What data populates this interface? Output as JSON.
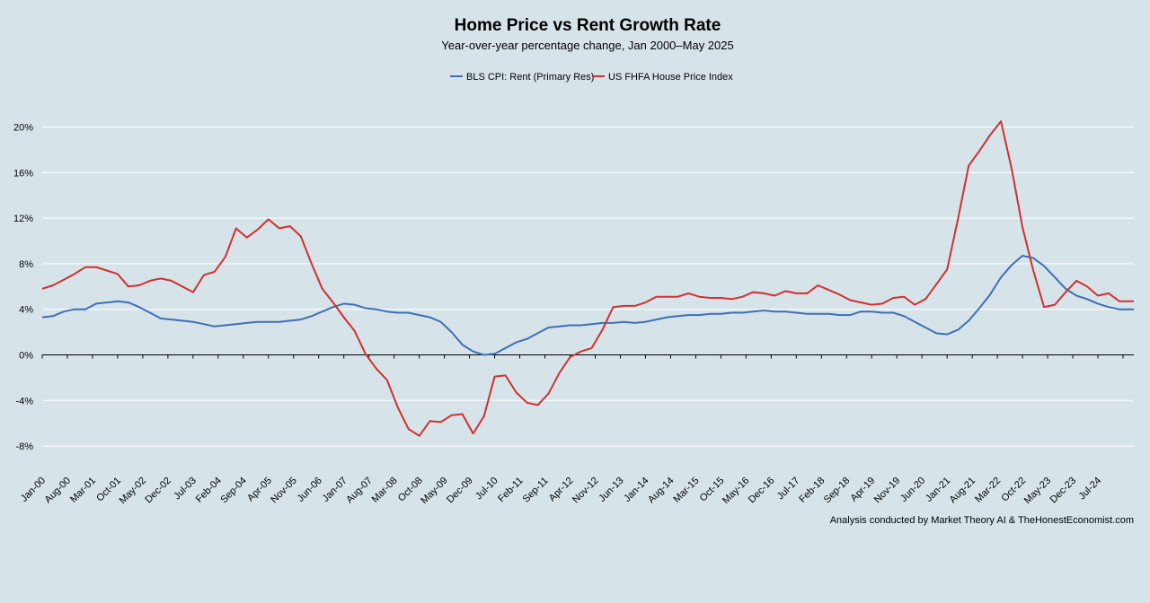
{
  "chart_data": {
    "type": "line",
    "title": "Home Price vs Rent Growth Rate",
    "subtitle": "Year-over-year percentage change, Jan 2000–May 2025",
    "xlabel": "",
    "ylabel": "",
    "ylim": [
      -10,
      22
    ],
    "yticks": [
      -8,
      -4,
      0,
      4,
      8,
      12,
      16,
      20
    ],
    "ytick_labels": [
      "-8%",
      "-4%",
      "0%",
      "4%",
      "8%",
      "12%",
      "16%",
      "20%"
    ],
    "x_start": "Jan-00",
    "x_end": "May-25",
    "xtick_labels": [
      "Jan-00",
      "Aug-00",
      "Mar-01",
      "Oct-01",
      "May-02",
      "Dec-02",
      "Jul-03",
      "Feb-04",
      "Sep-04",
      "Apr-05",
      "Nov-05",
      "Jun-06",
      "Jan-07",
      "Aug-07",
      "Mar-08",
      "Oct-08",
      "May-09",
      "Dec-09",
      "Jul-10",
      "Feb-11",
      "Sep-11",
      "Apr-12",
      "Nov-12",
      "Jun-13",
      "Jan-14",
      "Aug-14",
      "Mar-15",
      "Oct-15",
      "May-16",
      "Dec-16",
      "Jul-17",
      "Feb-18",
      "Sep-18",
      "Apr-19",
      "Nov-19",
      "Jun-20",
      "Jan-21",
      "Aug-21",
      "Mar-22",
      "Oct-22",
      "May-23",
      "Dec-23",
      "Jul-24"
    ],
    "grid": true,
    "legend_position": "top-center",
    "annotation": "Analysis conducted by Market Theory AI & TheHonestEconomist.com",
    "series": [
      {
        "name": "BLS CPI: Rent (Primary Res)",
        "color": "#3e6fb6",
        "x": [
          "Jan-00",
          "Apr-00",
          "Jul-00",
          "Oct-00",
          "Jan-01",
          "Apr-01",
          "Jul-01",
          "Oct-01",
          "Jan-02",
          "Apr-02",
          "Jul-02",
          "Oct-02",
          "Jan-03",
          "Apr-03",
          "Jul-03",
          "Oct-03",
          "Jan-04",
          "Apr-04",
          "Jul-04",
          "Oct-04",
          "Jan-05",
          "Apr-05",
          "Jul-05",
          "Oct-05",
          "Jan-06",
          "Apr-06",
          "Jul-06",
          "Oct-06",
          "Jan-07",
          "Apr-07",
          "Jul-07",
          "Oct-07",
          "Jan-08",
          "Apr-08",
          "Jul-08",
          "Oct-08",
          "Jan-09",
          "Apr-09",
          "Jul-09",
          "Oct-09",
          "Jan-10",
          "Apr-10",
          "Jul-10",
          "Oct-10",
          "Jan-11",
          "Apr-11",
          "Jul-11",
          "Oct-11",
          "Jan-12",
          "Apr-12",
          "Jul-12",
          "Oct-12",
          "Jan-13",
          "Apr-13",
          "Jul-13",
          "Oct-13",
          "Jan-14",
          "Apr-14",
          "Jul-14",
          "Oct-14",
          "Jan-15",
          "Apr-15",
          "Jul-15",
          "Oct-15",
          "Jan-16",
          "Apr-16",
          "Jul-16",
          "Oct-16",
          "Jan-17",
          "Apr-17",
          "Jul-17",
          "Oct-17",
          "Jan-18",
          "Apr-18",
          "Jul-18",
          "Oct-18",
          "Jan-19",
          "Apr-19",
          "Jul-19",
          "Oct-19",
          "Jan-20",
          "Apr-20",
          "Jul-20",
          "Oct-20",
          "Jan-21",
          "Apr-21",
          "Jul-21",
          "Oct-21",
          "Jan-22",
          "Apr-22",
          "Jul-22",
          "Oct-22",
          "Jan-23",
          "Apr-23",
          "Jul-23",
          "Oct-23",
          "Jan-24",
          "Apr-24",
          "Jul-24",
          "Oct-24",
          "Jan-25",
          "May-25"
        ],
        "values": [
          3.3,
          3.4,
          3.8,
          4.0,
          4.0,
          4.5,
          4.6,
          4.7,
          4.6,
          4.2,
          3.7,
          3.2,
          3.1,
          3.0,
          2.9,
          2.7,
          2.5,
          2.6,
          2.7,
          2.8,
          2.9,
          2.9,
          2.9,
          3.0,
          3.1,
          3.4,
          3.8,
          4.2,
          4.5,
          4.4,
          4.1,
          4.0,
          3.8,
          3.7,
          3.7,
          3.5,
          3.3,
          2.9,
          2.0,
          0.9,
          0.3,
          0.0,
          0.1,
          0.6,
          1.1,
          1.4,
          1.9,
          2.4,
          2.5,
          2.6,
          2.6,
          2.7,
          2.8,
          2.8,
          2.9,
          2.8,
          2.9,
          3.1,
          3.3,
          3.4,
          3.5,
          3.5,
          3.6,
          3.6,
          3.7,
          3.7,
          3.8,
          3.9,
          3.8,
          3.8,
          3.7,
          3.6,
          3.6,
          3.6,
          3.5,
          3.5,
          3.8,
          3.8,
          3.7,
          3.7,
          3.4,
          2.9,
          2.4,
          1.9,
          1.8,
          2.2,
          3.0,
          4.1,
          5.3,
          6.8,
          7.9,
          8.7,
          8.5,
          7.8,
          6.8,
          5.8,
          5.2,
          4.9,
          4.5,
          4.2,
          4.0,
          4.0
        ]
      },
      {
        "name": "US FHFA House Price Index",
        "color": "#d0302e",
        "x": [
          "Jan-00",
          "Apr-00",
          "Jul-00",
          "Oct-00",
          "Jan-01",
          "Apr-01",
          "Jul-01",
          "Oct-01",
          "Jan-02",
          "Apr-02",
          "Jul-02",
          "Oct-02",
          "Jan-03",
          "Apr-03",
          "Jul-03",
          "Oct-03",
          "Jan-04",
          "Apr-04",
          "Jul-04",
          "Oct-04",
          "Jan-05",
          "Apr-05",
          "Jul-05",
          "Oct-05",
          "Jan-06",
          "Apr-06",
          "Jul-06",
          "Oct-06",
          "Jan-07",
          "Apr-07",
          "Jul-07",
          "Oct-07",
          "Jan-08",
          "Apr-08",
          "Jul-08",
          "Oct-08",
          "Jan-09",
          "Apr-09",
          "Jul-09",
          "Oct-09",
          "Jan-10",
          "Apr-10",
          "Jul-10",
          "Oct-10",
          "Jan-11",
          "Apr-11",
          "Jul-11",
          "Oct-11",
          "Jan-12",
          "Apr-12",
          "Jul-12",
          "Oct-12",
          "Jan-13",
          "Apr-13",
          "Jul-13",
          "Oct-13",
          "Jan-14",
          "Apr-14",
          "Jul-14",
          "Oct-14",
          "Jan-15",
          "Apr-15",
          "Jul-15",
          "Oct-15",
          "Jan-16",
          "Apr-16",
          "Jul-16",
          "Oct-16",
          "Jan-17",
          "Apr-17",
          "Jul-17",
          "Oct-17",
          "Jan-18",
          "Apr-18",
          "Jul-18",
          "Oct-18",
          "Jan-19",
          "Apr-19",
          "Jul-19",
          "Oct-19",
          "Jan-20",
          "Apr-20",
          "Jul-20",
          "Oct-20",
          "Jan-21",
          "Apr-21",
          "Jul-21",
          "Oct-21",
          "Jan-22",
          "Apr-22",
          "Jul-22",
          "Oct-22",
          "Jan-23",
          "Apr-23",
          "Jul-23",
          "Oct-23",
          "Jan-24",
          "Apr-24",
          "Jul-24",
          "Oct-24",
          "Jan-25",
          "May-25"
        ],
        "values": [
          5.8,
          6.1,
          6.6,
          7.1,
          7.7,
          7.7,
          7.4,
          7.1,
          6.0,
          6.1,
          6.5,
          6.7,
          6.5,
          6.0,
          5.5,
          7.0,
          7.3,
          8.6,
          11.1,
          10.3,
          11.0,
          11.9,
          11.1,
          11.3,
          10.4,
          8.0,
          5.8,
          4.6,
          3.3,
          2.1,
          0.1,
          -1.2,
          -2.2,
          -4.6,
          -6.5,
          -7.1,
          -5.8,
          -5.9,
          -5.3,
          -5.2,
          -6.9,
          -5.4,
          -1.9,
          -1.8,
          -3.3,
          -4.2,
          -4.4,
          -3.4,
          -1.6,
          -0.2,
          0.3,
          0.6,
          2.2,
          4.2,
          4.3,
          4.3,
          4.6,
          5.1,
          5.1,
          5.1,
          5.4,
          5.1,
          5.0,
          5.0,
          4.9,
          5.1,
          5.5,
          5.4,
          5.2,
          5.6,
          5.4,
          5.4,
          6.1,
          5.7,
          5.3,
          4.8,
          4.6,
          4.4,
          4.5,
          5.0,
          5.1,
          4.4,
          4.9,
          6.2,
          7.5,
          11.9,
          16.6,
          17.9,
          19.3,
          20.5,
          16.3,
          11.2,
          7.4,
          4.2,
          4.4,
          5.5,
          6.5,
          6.0,
          5.2,
          5.4,
          4.7,
          4.7
        ]
      }
    ]
  }
}
